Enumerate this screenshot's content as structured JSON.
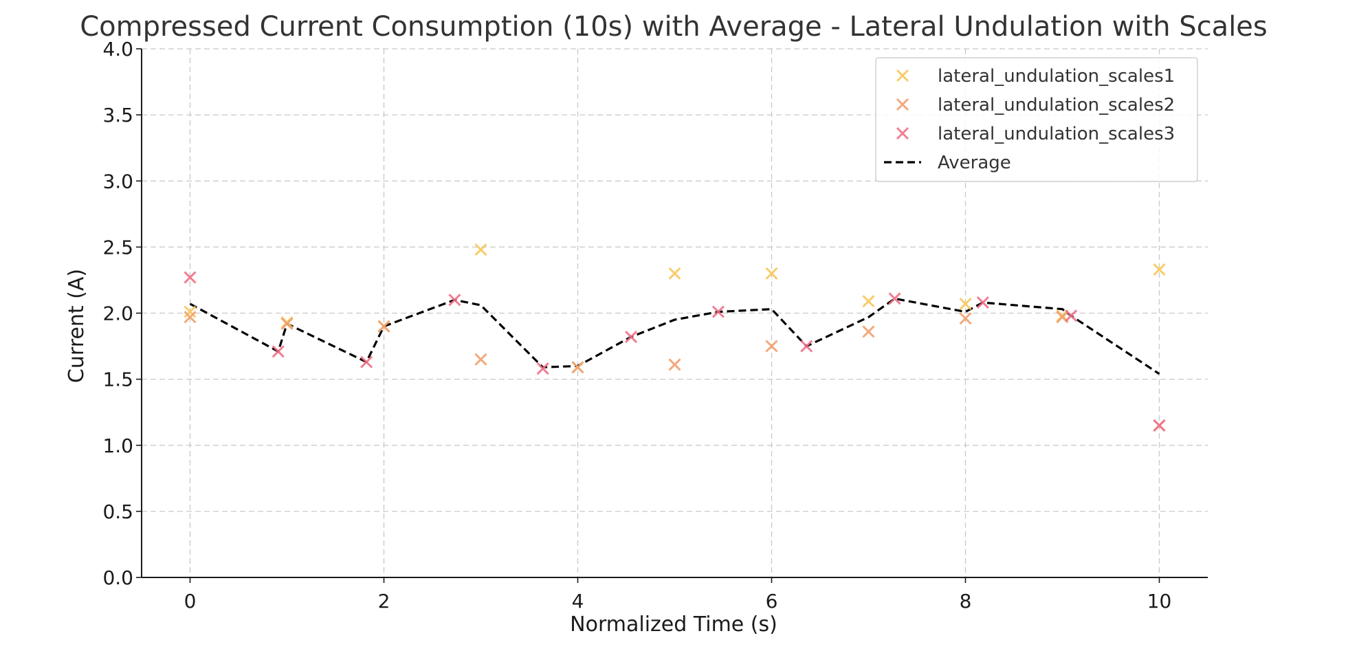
{
  "chart_data": {
    "type": "scatter",
    "title": "Compressed Current Consumption (10s) with Average - Lateral Undulation with Scales",
    "xlabel": "Normalized Time (s)",
    "ylabel": "Current (A)",
    "xlim": [
      -0.5,
      10.5
    ],
    "ylim": [
      0.0,
      4.0
    ],
    "xticks": [
      0,
      2,
      4,
      6,
      8,
      10
    ],
    "xtick_labels": [
      "0",
      "2",
      "4",
      "6",
      "8",
      "10"
    ],
    "yticks": [
      0.0,
      0.5,
      1.0,
      1.5,
      2.0,
      2.5,
      3.0,
      3.5,
      4.0
    ],
    "ytick_labels": [
      "0.0",
      "0.5",
      "1.0",
      "1.5",
      "2.0",
      "2.5",
      "3.0",
      "3.5",
      "4.0"
    ],
    "grid": true,
    "legend_position": "top-right",
    "series": [
      {
        "name": "lateral_undulation_scales1",
        "marker": "x",
        "color": "#f9c75a",
        "x": [
          0,
          1,
          2,
          3,
          4,
          5,
          6,
          7,
          8,
          9,
          10
        ],
        "y": [
          2.01,
          1.93,
          1.9,
          2.48,
          1.59,
          2.3,
          2.3,
          2.09,
          2.07,
          1.98,
          2.33
        ]
      },
      {
        "name": "lateral_undulation_scales2",
        "marker": "x",
        "color": "#f0a070",
        "x": [
          0,
          1,
          2,
          3,
          4,
          5,
          6,
          7,
          8,
          9,
          10
        ],
        "y": [
          1.97,
          1.92,
          1.9,
          1.65,
          1.59,
          1.61,
          1.75,
          1.86,
          1.96,
          1.97,
          1.15
        ]
      },
      {
        "name": "lateral_undulation_scales3",
        "marker": "x",
        "color": "#f07088",
        "x": [
          0,
          0.91,
          1.82,
          2.73,
          3.64,
          4.55,
          5.45,
          6.36,
          7.27,
          8.18,
          9.09,
          10
        ],
        "y": [
          2.27,
          1.71,
          1.63,
          2.1,
          1.58,
          1.82,
          2.01,
          1.75,
          2.11,
          2.08,
          1.98,
          1.15
        ]
      },
      {
        "name": "Average",
        "line": "dashed",
        "color": "#000000",
        "x": [
          0,
          0.91,
          1,
          1.82,
          2,
          2.73,
          3,
          3.64,
          4,
          4.55,
          5,
          5.45,
          6,
          6.36,
          7,
          7.27,
          8,
          8.18,
          9,
          9.09,
          10
        ],
        "y": [
          2.07,
          1.71,
          1.92,
          1.63,
          1.9,
          2.1,
          2.06,
          1.59,
          1.6,
          1.82,
          1.95,
          2.01,
          2.03,
          1.75,
          1.97,
          2.11,
          2.01,
          2.08,
          2.03,
          1.98,
          1.54
        ]
      }
    ]
  }
}
